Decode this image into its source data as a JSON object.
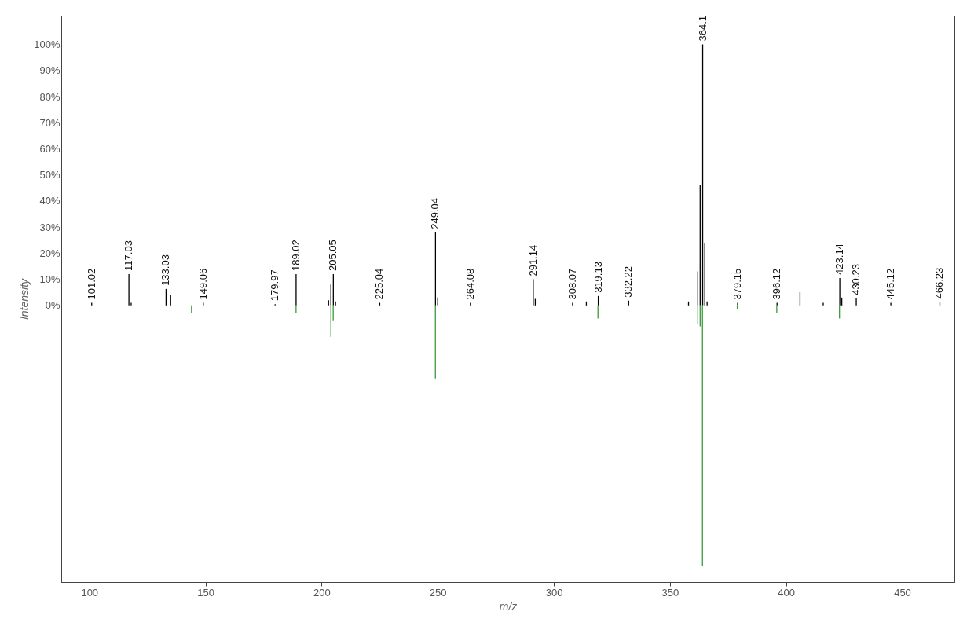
{
  "chart_data": {
    "type": "bar",
    "xlabel": "m/z",
    "ylabel": "Intensity",
    "xlim": [
      89.6,
      470.8
    ],
    "ylim": [
      -106,
      111
    ],
    "xticks": [
      100,
      150,
      200,
      250,
      300,
      350,
      400,
      450
    ],
    "yticks": [
      {
        "value": 0,
        "label": "0%"
      },
      {
        "value": 10,
        "label": "10%"
      },
      {
        "value": 20,
        "label": "20%"
      },
      {
        "value": 30,
        "label": "30%"
      },
      {
        "value": 40,
        "label": "40%"
      },
      {
        "value": 50,
        "label": "50%"
      },
      {
        "value": 60,
        "label": "60%"
      },
      {
        "value": 70,
        "label": "70%"
      },
      {
        "value": 80,
        "label": "80%"
      },
      {
        "value": 90,
        "label": "90%"
      },
      {
        "value": 100,
        "label": "100%"
      }
    ],
    "grid": false,
    "series": [
      {
        "color": "#000000",
        "x": [
          101.02,
          117.03,
          118,
          133.03,
          135,
          149.06,
          179.97,
          189.02,
          203,
          204,
          205.05,
          206,
          225.04,
          249.04,
          250,
          264.08,
          291.14,
          292,
          308.07,
          314,
          319.13,
          332.22,
          358,
          362,
          363,
          364.1,
          365,
          366,
          379.15,
          396.12,
          406,
          416,
          423.14,
          424,
          430.23,
          445.12,
          466.23
        ],
        "values": [
          1,
          12,
          1,
          6.3,
          4,
          1,
          0.5,
          12,
          2,
          8,
          12,
          1.5,
          1,
          28,
          3,
          1,
          10,
          2.5,
          1,
          1.5,
          3.6,
          1.8,
          1.5,
          13,
          46,
          100,
          24,
          1.5,
          1,
          1,
          5.1,
          1,
          10.5,
          3,
          2.7,
          1,
          1.3
        ]
      },
      {
        "color": "#3a9a3a",
        "x": [
          144,
          189,
          204,
          205,
          249,
          319,
          362,
          363,
          364,
          379,
          396,
          423
        ],
        "values": [
          -3,
          -3,
          -12,
          -6,
          -28,
          -5,
          -7,
          -8,
          -100,
          -1.5,
          -3,
          -5
        ]
      }
    ],
    "annotations": [
      {
        "text": "101.02",
        "x": 101.02,
        "y": 1
      },
      {
        "text": "117.03",
        "x": 117.03,
        "y": 12
      },
      {
        "text": "133.03",
        "x": 133.03,
        "y": 6.3
      },
      {
        "text": "149.06",
        "x": 149.06,
        "y": 1
      },
      {
        "text": "179.97",
        "x": 179.97,
        "y": 0.5
      },
      {
        "text": "189.02",
        "x": 189.02,
        "y": 12
      },
      {
        "text": "205.05",
        "x": 205.05,
        "y": 12
      },
      {
        "text": "225.04",
        "x": 225.04,
        "y": 1
      },
      {
        "text": "249.04",
        "x": 249.04,
        "y": 28
      },
      {
        "text": "264.08",
        "x": 264.08,
        "y": 1
      },
      {
        "text": "291.14",
        "x": 291.14,
        "y": 10
      },
      {
        "text": "308.07",
        "x": 308.07,
        "y": 1
      },
      {
        "text": "319.13",
        "x": 319.13,
        "y": 3.6
      },
      {
        "text": "332.22",
        "x": 332.22,
        "y": 1.8
      },
      {
        "text": "364.1",
        "x": 364.1,
        "y": 100
      },
      {
        "text": "379.15",
        "x": 379.15,
        "y": 1
      },
      {
        "text": "396.12",
        "x": 396.12,
        "y": 1
      },
      {
        "text": "423.14",
        "x": 423.14,
        "y": 10.5
      },
      {
        "text": "430.23",
        "x": 430.23,
        "y": 2.7
      },
      {
        "text": "445.12",
        "x": 445.12,
        "y": 1
      },
      {
        "text": "466.23",
        "x": 466.23,
        "y": 1.3
      }
    ]
  }
}
